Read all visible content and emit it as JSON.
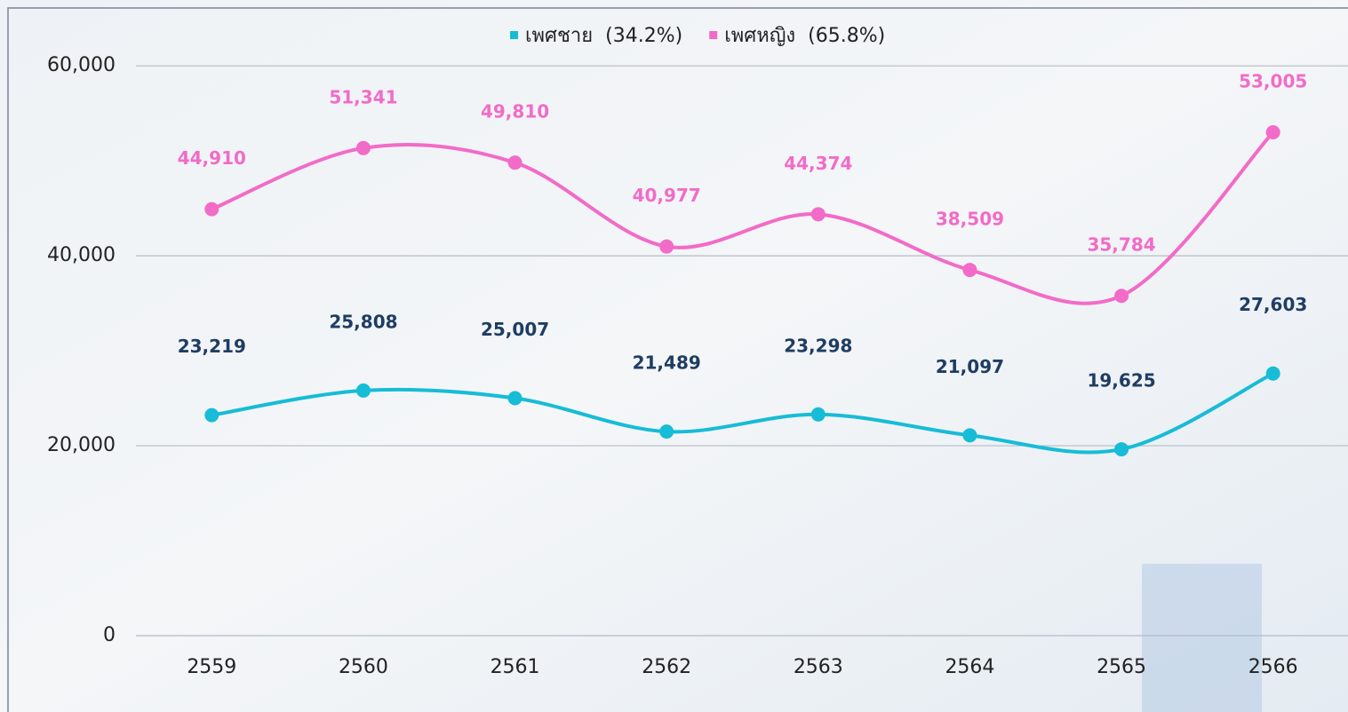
{
  "chart_data": {
    "type": "line",
    "categories": [
      "2559",
      "2560",
      "2561",
      "2562",
      "2563",
      "2564",
      "2565",
      "2566"
    ],
    "series": [
      {
        "name": "เพศชาย  (34.2%)",
        "color": "#17bcd6",
        "label_color": "#1f3d63",
        "values": [
          23219,
          25808,
          25007,
          21489,
          23298,
          21097,
          19625,
          27603
        ],
        "value_labels": [
          "23,219",
          "25,808",
          "25,007",
          "21,489",
          "23,298",
          "21,097",
          "19,625",
          "27,603"
        ]
      },
      {
        "name": "เพศหญิง  (65.8%)",
        "color": "#f26bc8",
        "label_color": "#f26bc8",
        "values": [
          44910,
          51341,
          49810,
          40977,
          44374,
          38509,
          35784,
          53005
        ],
        "value_labels": [
          "44,910",
          "51,341",
          "49,810",
          "40,977",
          "44,374",
          "38,509",
          "35,784",
          "53,005"
        ]
      }
    ],
    "ylim": [
      0,
      66000
    ],
    "yticks": [
      0,
      {
        "value": 20000,
        "label": "20,000"
      },
      {
        "value": 40000,
        "label": "40,000"
      },
      {
        "value": 60000,
        "label": "60,000"
      }
    ],
    "grid": true,
    "legend": "top",
    "smooth": true
  }
}
